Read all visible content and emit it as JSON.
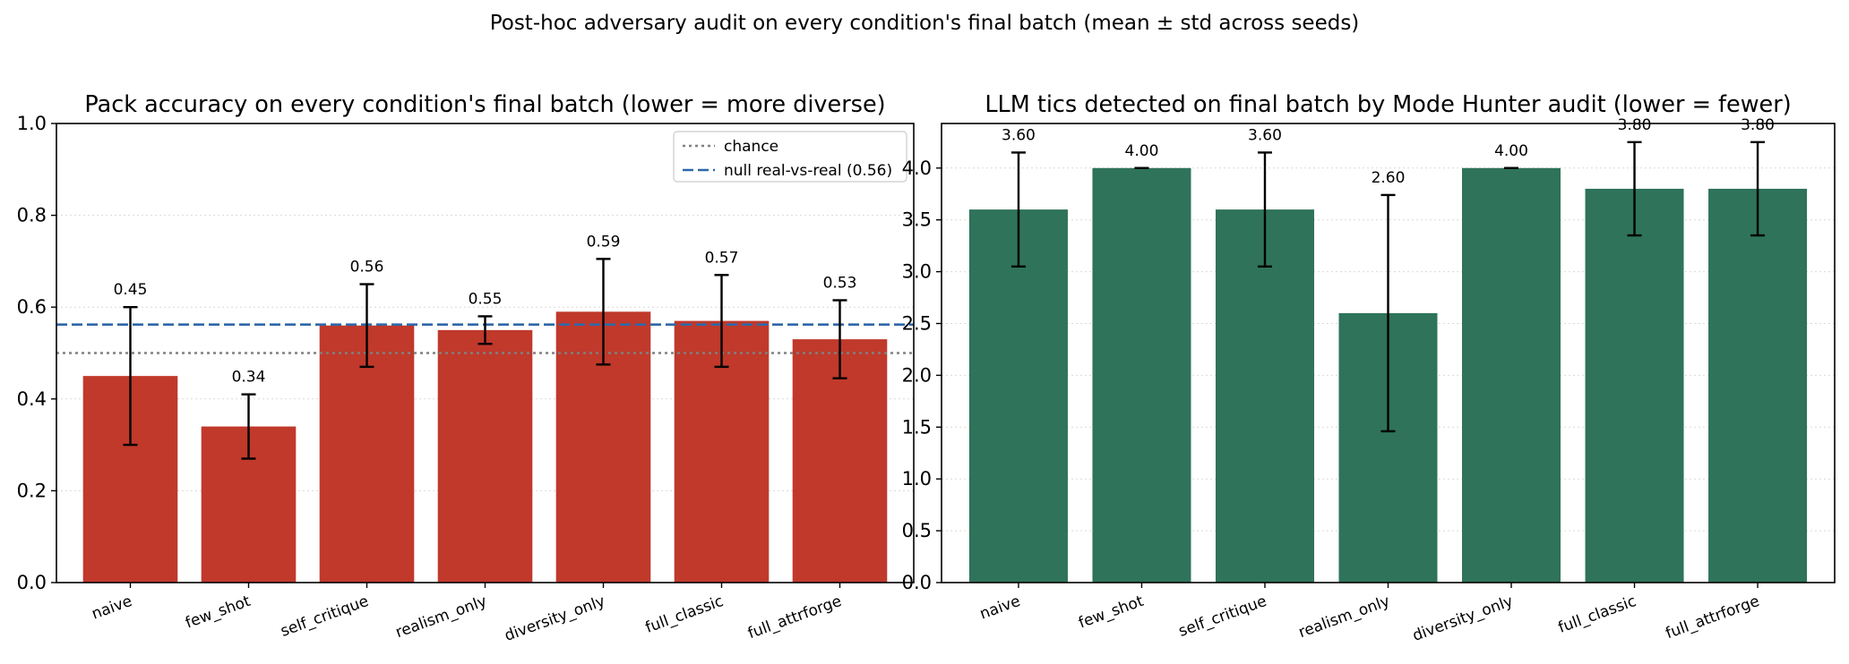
{
  "figure": {
    "suptitle": "Post-hoc adversary audit on every condition's final batch (mean ± std across seeds)"
  },
  "chart_data": [
    {
      "type": "bar",
      "title": "Pack accuracy on every condition's final batch (lower = more diverse)",
      "xlabel": "",
      "ylabel": "",
      "categories": [
        "naive",
        "few_shot",
        "self_critique",
        "realism_only",
        "diversity_only",
        "full_classic",
        "full_attrforge"
      ],
      "values": [
        0.45,
        0.34,
        0.56,
        0.55,
        0.59,
        0.57,
        0.53
      ],
      "value_labels": [
        "0.45",
        "0.34",
        "0.56",
        "0.55",
        "0.59",
        "0.57",
        "0.53"
      ],
      "errors": [
        0.15,
        0.07,
        0.09,
        0.03,
        0.115,
        0.1,
        0.085
      ],
      "ylim": [
        0,
        1.0
      ],
      "yticks": [
        0.0,
        0.2,
        0.4,
        0.6,
        0.8,
        1.0
      ],
      "ytick_labels": [
        "0.0",
        "0.2",
        "0.4",
        "0.6",
        "0.8",
        "1.0"
      ],
      "bar_color": "#c0392b",
      "grid": "y dotted",
      "legend_position": "upper right",
      "reference_lines": [
        {
          "label": "chance",
          "y": 0.5,
          "style": "dotted",
          "color": "#808080"
        },
        {
          "label": "null real-vs-real (0.56)",
          "y": 0.562,
          "style": "dashed",
          "color": "#2f68a8"
        }
      ]
    },
    {
      "type": "bar",
      "title": "LLM tics detected on final batch by Mode Hunter audit (lower = fewer)",
      "xlabel": "",
      "ylabel": "",
      "categories": [
        "naive",
        "few_shot",
        "self_critique",
        "realism_only",
        "diversity_only",
        "full_classic",
        "full_attrforge"
      ],
      "values": [
        3.6,
        4.0,
        3.6,
        2.6,
        4.0,
        3.8,
        3.8
      ],
      "value_labels": [
        "3.60",
        "4.00",
        "3.60",
        "2.60",
        "4.00",
        "3.80",
        "3.80"
      ],
      "errors": [
        0.55,
        0.0,
        0.55,
        1.14,
        0.0,
        0.45,
        0.45
      ],
      "ylim": [
        0,
        4.43
      ],
      "yticks": [
        0.0,
        0.5,
        1.0,
        1.5,
        2.0,
        2.5,
        3.0,
        3.5,
        4.0
      ],
      "ytick_labels": [
        "0.0",
        "0.5",
        "1.0",
        "1.5",
        "2.0",
        "2.5",
        "3.0",
        "3.5",
        "4.0"
      ],
      "bar_color": "#2e735a",
      "grid": "y dotted"
    }
  ]
}
